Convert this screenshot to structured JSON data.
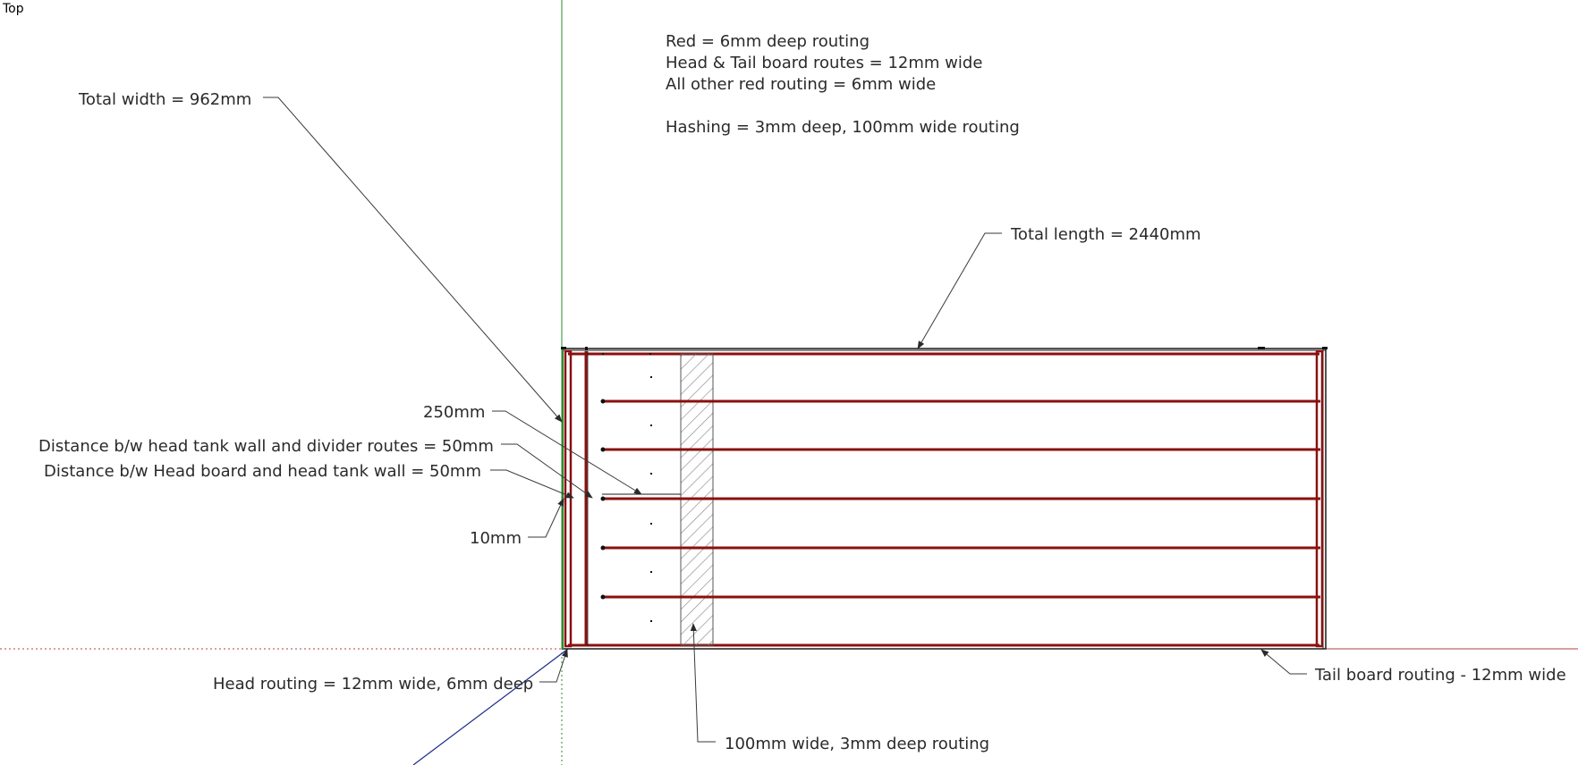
{
  "view": {
    "label": "Top"
  },
  "notes": {
    "line1": "Red = 6mm deep routing",
    "line2": "Head & Tail board routes = 12mm wide",
    "line3": "All other red routing = 6mm wide",
    "line4": "Hashing = 3mm deep, 100mm wide routing"
  },
  "annotations": {
    "total_width": "Total width = 962mm",
    "total_length": "Total length = 2440mm",
    "dim_250": "250mm",
    "divider_gap": "Distance b/w head tank wall and divider routes = 50mm",
    "head_gap": "Distance b/w Head board and head tank wall = 50mm",
    "dim_10": "10mm",
    "head_routing": "Head routing = 12mm wide, 6mm deep",
    "tail_routing": "Tail board routing - 12mm wide",
    "hash_routing": "100mm wide, 3mm deep routing"
  },
  "colors": {
    "routing": "#8a1010",
    "axis_green": "#2e8b2e",
    "axis_red": "#b04040",
    "axis_blue": "#1a2a8a",
    "hatch": "#888888"
  }
}
